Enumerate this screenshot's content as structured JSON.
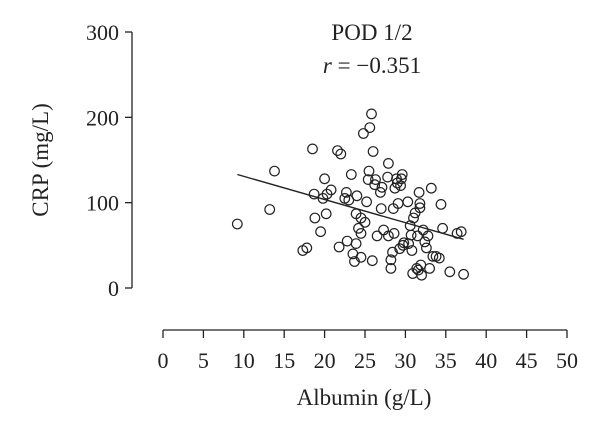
{
  "chart_data": {
    "type": "scatter",
    "title": "POD 1/2",
    "annotation": {
      "variable": "r",
      "text": " = −0.351"
    },
    "xlabel": "Albumin (g/L)",
    "ylabel": "CRP (mg/L)",
    "xlim": [
      0,
      50
    ],
    "ylim": [
      0,
      300
    ],
    "xticks": [
      0,
      5,
      10,
      15,
      20,
      25,
      30,
      35,
      40,
      45,
      50
    ],
    "yticks": [
      0,
      100,
      200,
      300
    ],
    "grid": false,
    "legend": false,
    "trendline": {
      "x": [
        9.2,
        37.2
      ],
      "y": [
        133,
        57
      ]
    },
    "points": [
      [
        9.2,
        75
      ],
      [
        13.2,
        92
      ],
      [
        13.8,
        137
      ],
      [
        17.3,
        44
      ],
      [
        17.8,
        47
      ],
      [
        18.5,
        163
      ],
      [
        18.7,
        110
      ],
      [
        18.8,
        82
      ],
      [
        19.5,
        66
      ],
      [
        19.8,
        105
      ],
      [
        20.2,
        87
      ],
      [
        20.0,
        128
      ],
      [
        20.3,
        110
      ],
      [
        20.8,
        115
      ],
      [
        21.6,
        161
      ],
      [
        21.8,
        48
      ],
      [
        22.0,
        157
      ],
      [
        22.5,
        105
      ],
      [
        22.7,
        112
      ],
      [
        22.8,
        55
      ],
      [
        23.0,
        103
      ],
      [
        23.3,
        133
      ],
      [
        23.5,
        40
      ],
      [
        23.7,
        31
      ],
      [
        23.9,
        87
      ],
      [
        23.9,
        52
      ],
      [
        24.0,
        108
      ],
      [
        24.2,
        70
      ],
      [
        24.5,
        36
      ],
      [
        24.5,
        82
      ],
      [
        24.5,
        64
      ],
      [
        24.8,
        181
      ],
      [
        25.0,
        77
      ],
      [
        25.2,
        101
      ],
      [
        25.4,
        127
      ],
      [
        25.5,
        137
      ],
      [
        25.6,
        188
      ],
      [
        25.8,
        204
      ],
      [
        25.9,
        32
      ],
      [
        26.0,
        160
      ],
      [
        26.2,
        121
      ],
      [
        26.3,
        127
      ],
      [
        26.5,
        61
      ],
      [
        26.9,
        112
      ],
      [
        27.0,
        93
      ],
      [
        27.1,
        118
      ],
      [
        27.3,
        68
      ],
      [
        27.8,
        130
      ],
      [
        27.9,
        146
      ],
      [
        27.9,
        61
      ],
      [
        28.2,
        23
      ],
      [
        28.2,
        33
      ],
      [
        28.4,
        42
      ],
      [
        28.5,
        93
      ],
      [
        28.6,
        64
      ],
      [
        28.7,
        117
      ],
      [
        28.9,
        128
      ],
      [
        29.0,
        123
      ],
      [
        29.1,
        99
      ],
      [
        29.3,
        46
      ],
      [
        29.4,
        120
      ],
      [
        29.5,
        128
      ],
      [
        29.6,
        133
      ],
      [
        29.7,
        50
      ],
      [
        29.8,
        53
      ],
      [
        30.3,
        101
      ],
      [
        30.4,
        52
      ],
      [
        30.6,
        73
      ],
      [
        30.7,
        62
      ],
      [
        30.8,
        44
      ],
      [
        30.9,
        17
      ],
      [
        31.0,
        82
      ],
      [
        31.2,
        88
      ],
      [
        31.4,
        23
      ],
      [
        31.5,
        61
      ],
      [
        31.6,
        21
      ],
      [
        31.7,
        112
      ],
      [
        31.8,
        99
      ],
      [
        31.8,
        94
      ],
      [
        31.9,
        27
      ],
      [
        32.0,
        15
      ],
      [
        32.2,
        68
      ],
      [
        32.4,
        54
      ],
      [
        32.6,
        47
      ],
      [
        32.8,
        61
      ],
      [
        33.0,
        23
      ],
      [
        33.2,
        117
      ],
      [
        33.4,
        37
      ],
      [
        33.8,
        37
      ],
      [
        34.2,
        35
      ],
      [
        34.4,
        98
      ],
      [
        34.6,
        70
      ],
      [
        35.5,
        19
      ],
      [
        36.4,
        64
      ],
      [
        36.9,
        66
      ],
      [
        37.2,
        16
      ]
    ]
  }
}
